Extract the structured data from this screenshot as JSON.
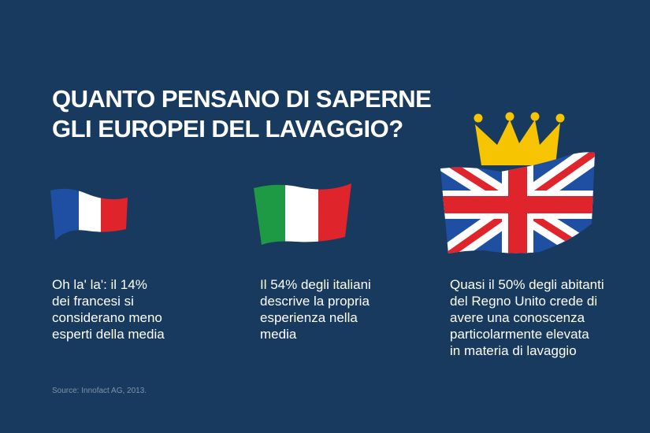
{
  "title": {
    "line1": "QUANTO PENSANO DI SAPERNE",
    "line2": "GLI EUROPEI DEL LAVAGGIO?"
  },
  "panels": [
    {
      "flag_icon": "france-flag-icon",
      "lines": [
        "Oh la' la': il 14%",
        "dei francesi si",
        "considerano meno",
        "esperti della media"
      ]
    },
    {
      "flag_icon": "italy-flag-icon",
      "lines": [
        "Il 54% degli italiani",
        "descrive la propria",
        "esperienza nella",
        "media"
      ]
    },
    {
      "flag_icon": "uk-flag-with-crown-icon",
      "lines": [
        "Quasi il 50% degli abitanti",
        "del Regno Unito crede di",
        "avere una conoscenza",
        "particolarmente elevata",
        "in materia di lavaggio"
      ]
    }
  ],
  "source": "Source: Innofact AG, 2013.",
  "colors": {
    "background": "#173a5e",
    "flag_blue": "#1f4fa3",
    "flag_red": "#e0242b",
    "flag_green": "#1e9a45",
    "crown_gold": "#f6c400"
  }
}
